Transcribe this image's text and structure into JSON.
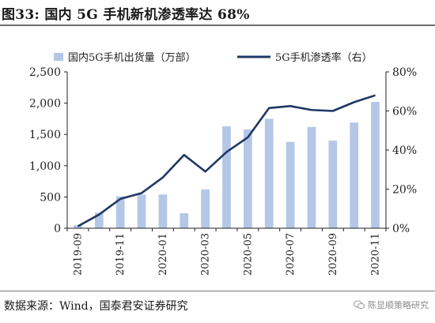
{
  "title": "图33: 国内 5G 手机新机渗透率达 68%",
  "source": "数据来源：Wind，国泰君安证券研究",
  "watermark": "陈显顺策略研究",
  "colors": {
    "bar": "#b4c7e7",
    "line": "#1f3864",
    "axis": "#222222",
    "rule": "#6f6f6f"
  },
  "chart_data": {
    "type": "bar",
    "categories": [
      "2019-09",
      "2019-10",
      "2019-11",
      "2019-12",
      "2020-01",
      "2020-02",
      "2020-03",
      "2020-04",
      "2020-05",
      "2020-06",
      "2020-07",
      "2020-08",
      "2020-09",
      "2020-10",
      "2020-11"
    ],
    "x_tick_labels": [
      "2019-09",
      "2019-11",
      "2020-01",
      "2020-03",
      "2020-05",
      "2020-07",
      "2020-09",
      "2020-11"
    ],
    "series": [
      {
        "name": "国内5G手机出货量（万部）",
        "type": "bar",
        "axis": "left",
        "values": [
          50,
          250,
          510,
          540,
          540,
          240,
          620,
          1630,
          1580,
          1750,
          1380,
          1620,
          1400,
          1690,
          2020
        ]
      },
      {
        "name": "5G手机渗透率（右）",
        "type": "line",
        "axis": "right",
        "values": [
          1,
          7,
          15,
          18,
          26,
          37.5,
          29,
          39,
          46.5,
          61.5,
          62.5,
          60.5,
          60,
          64.5,
          68
        ]
      }
    ],
    "y_left": {
      "min": 0,
      "max": 2500,
      "ticks": [
        "0",
        "500",
        "1,000",
        "1,500",
        "2,000",
        "2,500"
      ]
    },
    "y_right": {
      "min": 0,
      "max": 80,
      "ticks": [
        "0%",
        "20%",
        "40%",
        "60%",
        "80%"
      ]
    },
    "legend_position": "top",
    "grid": false
  }
}
